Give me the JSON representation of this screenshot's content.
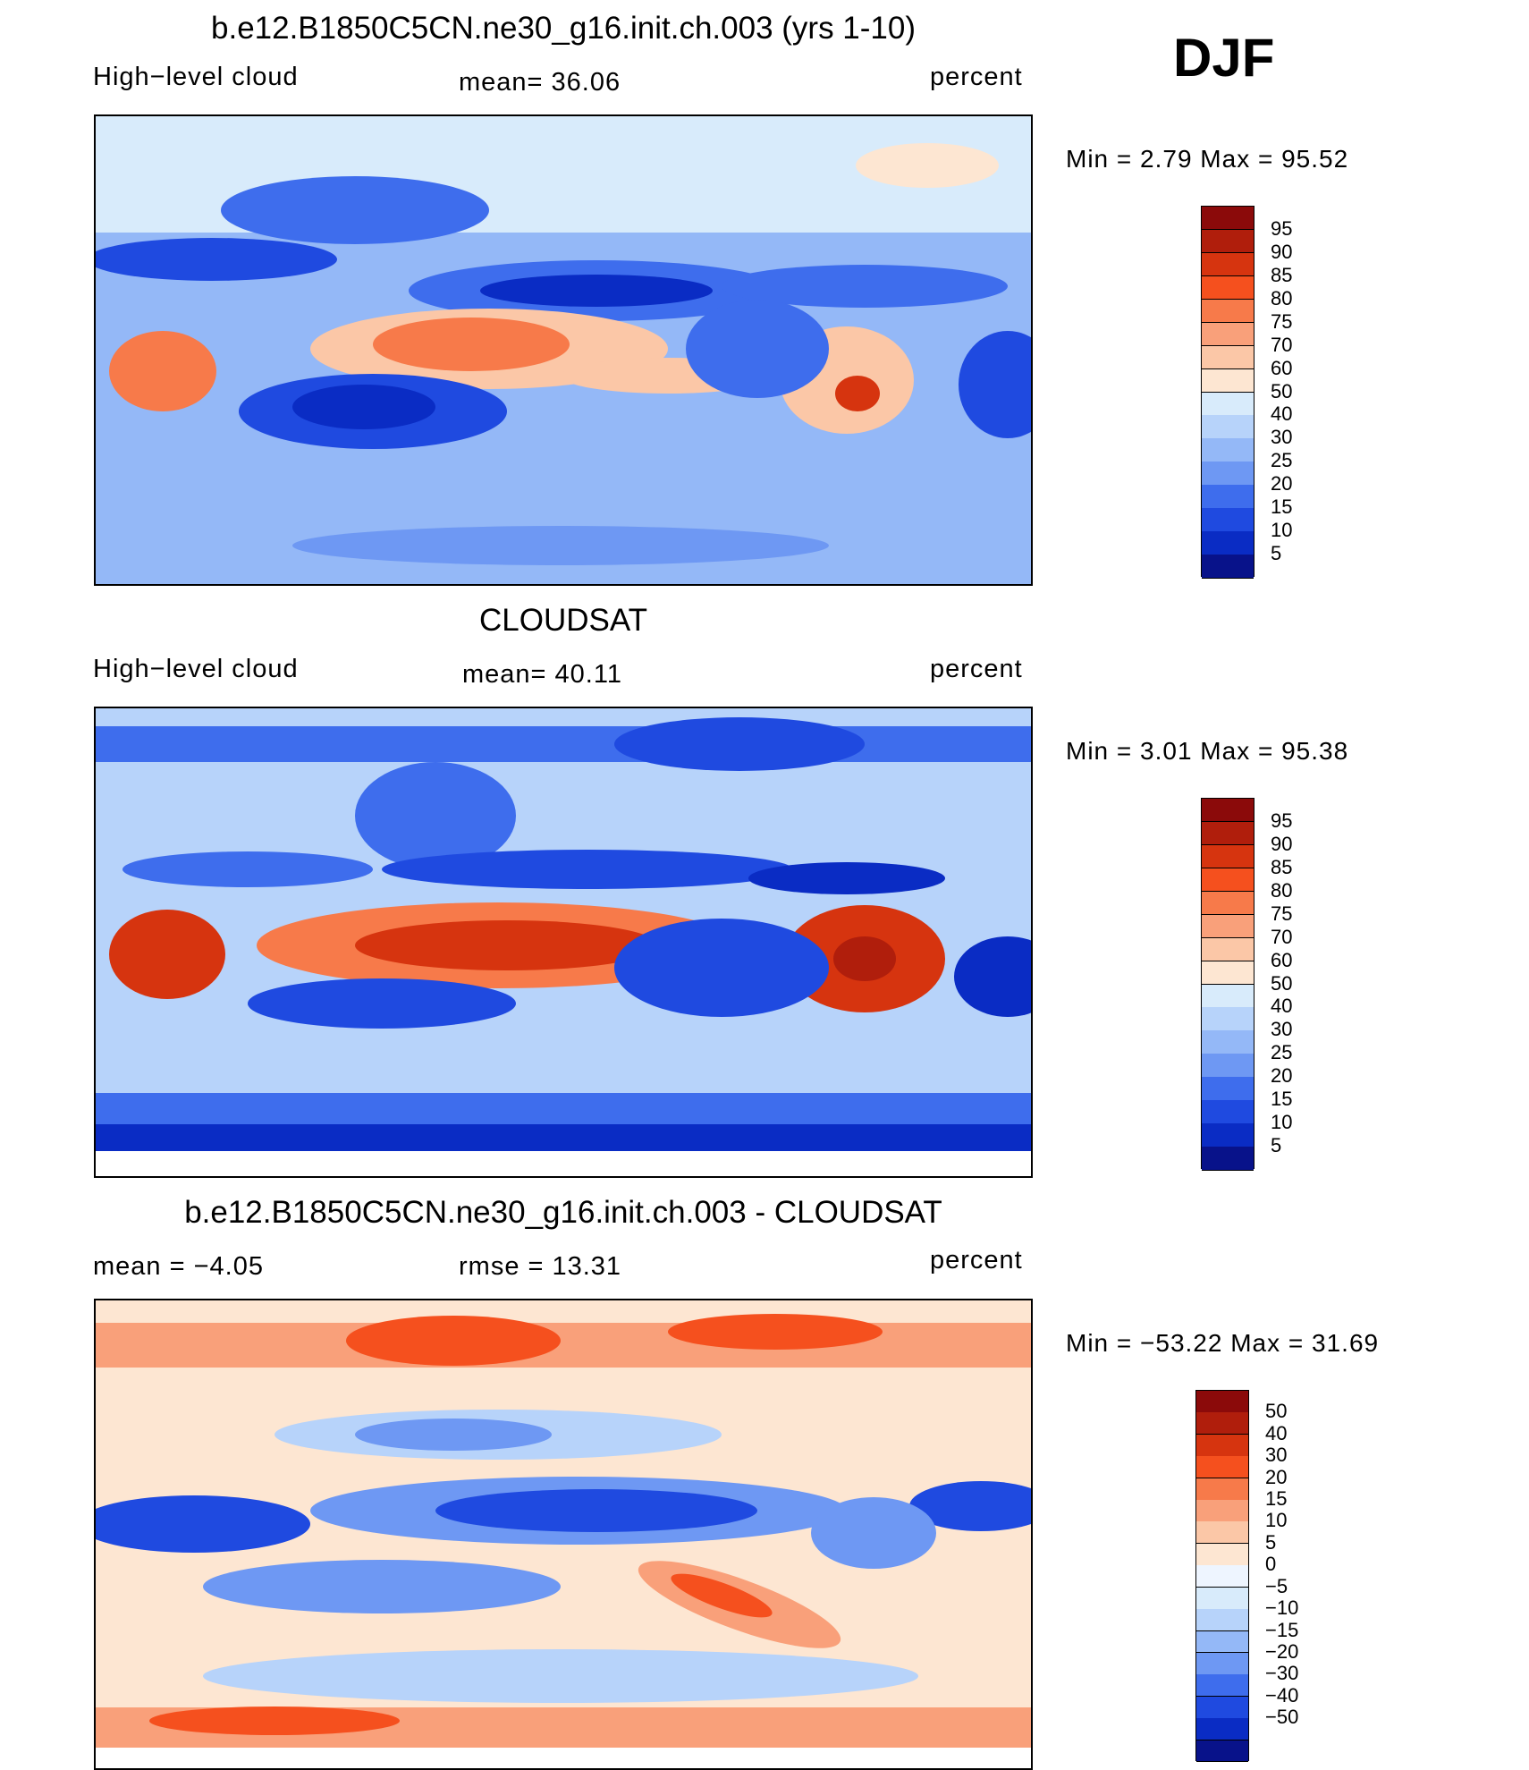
{
  "season": "DJF",
  "panels": [
    {
      "title": "b.e12.B1850C5CN.ne30_g16.init.ch.003 (yrs 1-10)",
      "left_label": "High−level cloud",
      "center_label": "mean=   36.06",
      "units": "percent",
      "minmax": "Min =     2.79  Max =     95.52"
    },
    {
      "title": "CLOUDSAT",
      "left_label": "High−level cloud",
      "center_label": "mean=   40.11",
      "units": "percent",
      "minmax": "Min =     3.01  Max =     95.38"
    },
    {
      "title": "b.e12.B1850C5CN.ne30_g16.init.ch.003 - CLOUDSAT",
      "left_label": "mean  =   −4.05",
      "center_label": "rmse  =    13.31",
      "units": "percent",
      "minmax": "Min = −53.22  Max =     31.69"
    }
  ],
  "colorbars": {
    "abs_labels": [
      "95",
      "90",
      "85",
      "80",
      "75",
      "70",
      "60",
      "50",
      "40",
      "30",
      "25",
      "20",
      "15",
      "10",
      "5"
    ],
    "diff_labels": [
      "50",
      "40",
      "30",
      "20",
      "15",
      "10",
      "5",
      "0",
      "−5",
      "−10",
      "−15",
      "−20",
      "−30",
      "−40",
      "−50"
    ],
    "abs_colors": [
      "#8b0a0a",
      "#b01e0c",
      "#d6340f",
      "#f5501e",
      "#f77a4a",
      "#f9a07a",
      "#fbc7a7",
      "#fde6d2",
      "#d8ebfb",
      "#b7d3fa",
      "#94b8f7",
      "#6e98f3",
      "#3e6ded",
      "#1f4ae0",
      "#0a2cc4",
      "#08128a"
    ],
    "diff_colors": [
      "#8b0a0a",
      "#b01e0c",
      "#d6340f",
      "#f5501e",
      "#f77a4a",
      "#f9a07a",
      "#fbc7a7",
      "#fde6d2",
      "#eef5ff",
      "#d8ebfb",
      "#b7d3fa",
      "#94b8f7",
      "#6e98f3",
      "#3e6ded",
      "#1f4ae0",
      "#0a2cc4",
      "#08128a"
    ]
  },
  "chart_data": [
    {
      "type": "heatmap",
      "title": "b.e12.B1850C5CN.ne30_g16.init.ch.003 (yrs 1-10)",
      "variable": "High−level cloud",
      "units": "percent",
      "season": "DJF",
      "mean": 36.06,
      "min": 2.79,
      "max": 95.52,
      "contour_levels": [
        5,
        10,
        15,
        20,
        25,
        30,
        40,
        50,
        60,
        70,
        75,
        80,
        85,
        90,
        95
      ]
    },
    {
      "type": "heatmap",
      "title": "CLOUDSAT",
      "variable": "High−level cloud",
      "units": "percent",
      "season": "DJF",
      "mean": 40.11,
      "min": 3.01,
      "max": 95.38,
      "contour_levels": [
        5,
        10,
        15,
        20,
        25,
        30,
        40,
        50,
        60,
        70,
        75,
        80,
        85,
        90,
        95
      ]
    },
    {
      "type": "heatmap",
      "title": "b.e12.B1850C5CN.ne30_g16.init.ch.003 - CLOUDSAT",
      "units": "percent",
      "season": "DJF",
      "mean": -4.05,
      "rmse": 13.31,
      "min": -53.22,
      "max": 31.69,
      "contour_levels": [
        -50,
        -40,
        -30,
        -20,
        -15,
        -10,
        -5,
        0,
        5,
        10,
        15,
        20,
        30,
        40,
        50
      ]
    }
  ]
}
